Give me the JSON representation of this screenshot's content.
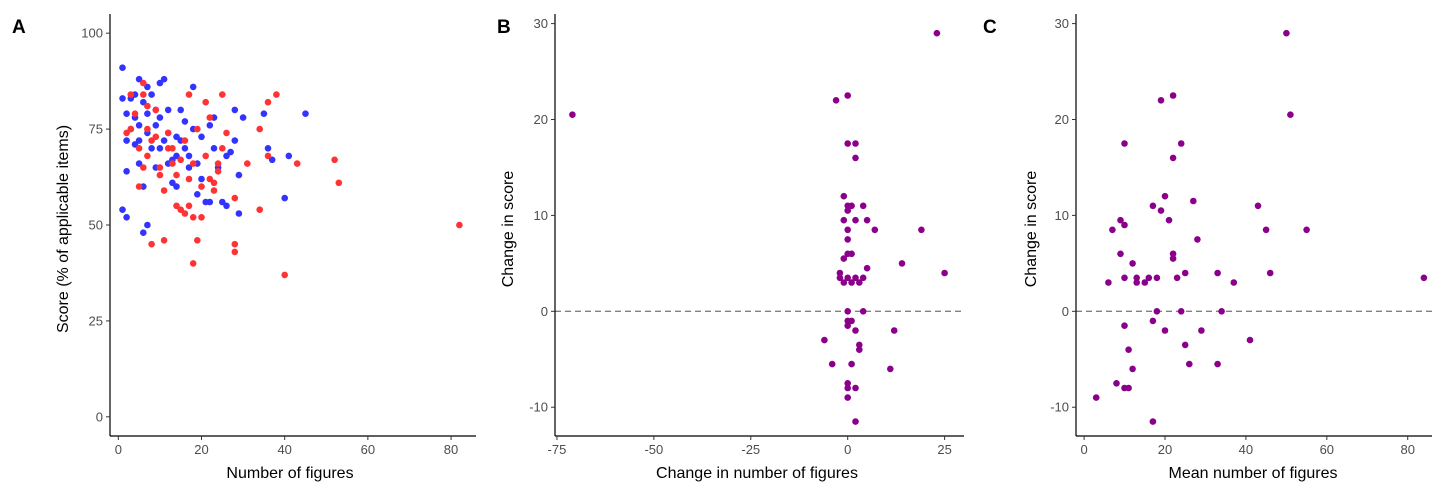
{
  "colors": {
    "series_a": "#3333ff",
    "series_b": "#ff3333",
    "purple": "#8b008b",
    "refline": "#808080"
  },
  "chart_data": [
    {
      "panel": "A",
      "type": "scatter",
      "xlabel": "Number of figures",
      "ylabel": "Score (% of applicable items)",
      "xlim": [
        -2,
        86
      ],
      "ylim": [
        -5,
        105
      ],
      "xticks": [
        0,
        20,
        40,
        60,
        80
      ],
      "yticks": [
        0,
        25,
        50,
        75,
        100
      ],
      "grid": false,
      "series": [
        {
          "color": "#3333ff",
          "points": [
            [
              1,
              91
            ],
            [
              1,
              83
            ],
            [
              1,
              54
            ],
            [
              2,
              52
            ],
            [
              2,
              64
            ],
            [
              2,
              72
            ],
            [
              2,
              79
            ],
            [
              3,
              75
            ],
            [
              3,
              83
            ],
            [
              4,
              78
            ],
            [
              4,
              71
            ],
            [
              4,
              84
            ],
            [
              5,
              66
            ],
            [
              5,
              72
            ],
            [
              5,
              76
            ],
            [
              5,
              88
            ],
            [
              6,
              48
            ],
            [
              6,
              60
            ],
            [
              6,
              82
            ],
            [
              7,
              86
            ],
            [
              7,
              50
            ],
            [
              7,
              74
            ],
            [
              7,
              79
            ],
            [
              8,
              84
            ],
            [
              8,
              70
            ],
            [
              9,
              80
            ],
            [
              9,
              76
            ],
            [
              9,
              65
            ],
            [
              10,
              78
            ],
            [
              10,
              87
            ],
            [
              10,
              70
            ],
            [
              11,
              72
            ],
            [
              11,
              88
            ],
            [
              12,
              74
            ],
            [
              12,
              80
            ],
            [
              12,
              66
            ],
            [
              13,
              67
            ],
            [
              13,
              61
            ],
            [
              14,
              60
            ],
            [
              14,
              73
            ],
            [
              14,
              68
            ],
            [
              15,
              72
            ],
            [
              15,
              80
            ],
            [
              16,
              70
            ],
            [
              16,
              77
            ],
            [
              17,
              65
            ],
            [
              17,
              68
            ],
            [
              18,
              86
            ],
            [
              18,
              75
            ],
            [
              19,
              66
            ],
            [
              19,
              58
            ],
            [
              20,
              62
            ],
            [
              20,
              73
            ],
            [
              21,
              56
            ],
            [
              22,
              76
            ],
            [
              22,
              56
            ],
            [
              23,
              78
            ],
            [
              23,
              70
            ],
            [
              24,
              65
            ],
            [
              25,
              56
            ],
            [
              26,
              55
            ],
            [
              26,
              68
            ],
            [
              27,
              69
            ],
            [
              28,
              80
            ],
            [
              28,
              72
            ],
            [
              29,
              53
            ],
            [
              29,
              63
            ],
            [
              30,
              78
            ],
            [
              35,
              79
            ],
            [
              36,
              70
            ],
            [
              37,
              67
            ],
            [
              40,
              57
            ],
            [
              41,
              68
            ],
            [
              45,
              79
            ]
          ]
        },
        {
          "color": "#ff3333",
          "points": [
            [
              2,
              74
            ],
            [
              3,
              75
            ],
            [
              3,
              84
            ],
            [
              4,
              79
            ],
            [
              5,
              70
            ],
            [
              5,
              60
            ],
            [
              6,
              65
            ],
            [
              6,
              84
            ],
            [
              6,
              87
            ],
            [
              7,
              68
            ],
            [
              7,
              75
            ],
            [
              7,
              81
            ],
            [
              8,
              45
            ],
            [
              8,
              72
            ],
            [
              9,
              80
            ],
            [
              9,
              73
            ],
            [
              10,
              65
            ],
            [
              10,
              63
            ],
            [
              11,
              46
            ],
            [
              11,
              59
            ],
            [
              12,
              70
            ],
            [
              12,
              74
            ],
            [
              13,
              66
            ],
            [
              13,
              70
            ],
            [
              14,
              55
            ],
            [
              14,
              63
            ],
            [
              15,
              54
            ],
            [
              15,
              67
            ],
            [
              16,
              53
            ],
            [
              16,
              72
            ],
            [
              17,
              62
            ],
            [
              17,
              84
            ],
            [
              17,
              55
            ],
            [
              18,
              40
            ],
            [
              18,
              52
            ],
            [
              18,
              66
            ],
            [
              19,
              46
            ],
            [
              19,
              75
            ],
            [
              20,
              52
            ],
            [
              20,
              60
            ],
            [
              21,
              82
            ],
            [
              21,
              68
            ],
            [
              22,
              62
            ],
            [
              22,
              78
            ],
            [
              23,
              61
            ],
            [
              23,
              59
            ],
            [
              24,
              64
            ],
            [
              24,
              66
            ],
            [
              25,
              84
            ],
            [
              25,
              70
            ],
            [
              26,
              74
            ],
            [
              28,
              43
            ],
            [
              28,
              45
            ],
            [
              28,
              57
            ],
            [
              31,
              66
            ],
            [
              34,
              54
            ],
            [
              34,
              75
            ],
            [
              36,
              68
            ],
            [
              36,
              82
            ],
            [
              38,
              84
            ],
            [
              40,
              37
            ],
            [
              43,
              66
            ],
            [
              52,
              67
            ],
            [
              53,
              61
            ],
            [
              82,
              50
            ]
          ]
        }
      ]
    },
    {
      "panel": "B",
      "type": "scatter",
      "xlabel": "Change in number of figures",
      "ylabel": "Change in score",
      "xlim": [
        -75.5,
        30
      ],
      "ylim": [
        -13,
        31
      ],
      "xticks": [
        -75,
        -50,
        -25,
        0,
        25
      ],
      "yticks": [
        -10,
        0,
        10,
        20,
        30
      ],
      "reference_line_y": 0,
      "grid": false,
      "series": [
        {
          "color": "#8b008b",
          "points": [
            [
              -71,
              20.5
            ],
            [
              -6,
              -3
            ],
            [
              -4,
              -5.5
            ],
            [
              -3,
              22
            ],
            [
              -2,
              4
            ],
            [
              -2,
              3.5
            ],
            [
              -1,
              3
            ],
            [
              -1,
              9.5
            ],
            [
              -1,
              5.5
            ],
            [
              -1,
              12
            ],
            [
              0,
              22.5
            ],
            [
              0,
              17.5
            ],
            [
              0,
              11
            ],
            [
              0,
              10.5
            ],
            [
              0,
              8.5
            ],
            [
              0,
              7.5
            ],
            [
              0,
              6
            ],
            [
              0,
              3.5
            ],
            [
              0,
              0
            ],
            [
              0,
              -1
            ],
            [
              0,
              -1.5
            ],
            [
              0,
              -7.5
            ],
            [
              0,
              -8
            ],
            [
              0,
              -9
            ],
            [
              1,
              -5.5
            ],
            [
              1,
              11
            ],
            [
              1,
              6
            ],
            [
              1,
              3
            ],
            [
              1,
              -1
            ],
            [
              2,
              17.5
            ],
            [
              2,
              16
            ],
            [
              2,
              9.5
            ],
            [
              2,
              -11.5
            ],
            [
              2,
              -8
            ],
            [
              2,
              -2
            ],
            [
              2,
              3.5
            ],
            [
              3,
              3
            ],
            [
              3,
              -3.5
            ],
            [
              3,
              -4
            ],
            [
              4,
              11
            ],
            [
              4,
              0
            ],
            [
              4,
              3.5
            ],
            [
              5,
              4.5
            ],
            [
              5,
              9.5
            ],
            [
              7,
              8.5
            ],
            [
              11,
              -6
            ],
            [
              12,
              -2
            ],
            [
              14,
              5
            ],
            [
              19,
              8.5
            ],
            [
              23,
              29
            ],
            [
              25,
              4
            ]
          ]
        }
      ]
    },
    {
      "panel": "C",
      "type": "scatter",
      "xlabel": "Mean number of figures",
      "ylabel": "Change in score",
      "xlim": [
        -2,
        86
      ],
      "ylim": [
        -13,
        31
      ],
      "xticks": [
        0,
        20,
        40,
        60,
        80
      ],
      "yticks": [
        -10,
        0,
        10,
        20,
        30
      ],
      "reference_line_y": 0,
      "grid": false,
      "series": [
        {
          "color": "#8b008b",
          "points": [
            [
              3,
              -9
            ],
            [
              6,
              3
            ],
            [
              7,
              8.5
            ],
            [
              8,
              -7.5
            ],
            [
              9,
              9.5
            ],
            [
              9,
              6
            ],
            [
              10,
              17.5
            ],
            [
              10,
              -1.5
            ],
            [
              10,
              9
            ],
            [
              10,
              3.5
            ],
            [
              10,
              -8
            ],
            [
              11,
              -4
            ],
            [
              11,
              -8
            ],
            [
              12,
              5
            ],
            [
              12,
              -6
            ],
            [
              13,
              3.5
            ],
            [
              13,
              3
            ],
            [
              15,
              3
            ],
            [
              16,
              3.5
            ],
            [
              17,
              -1
            ],
            [
              17,
              11
            ],
            [
              17,
              -11.5
            ],
            [
              18,
              3.5
            ],
            [
              18,
              0
            ],
            [
              19,
              22
            ],
            [
              19,
              10.5
            ],
            [
              20,
              12
            ],
            [
              20,
              -2
            ],
            [
              21,
              9.5
            ],
            [
              22,
              22.5
            ],
            [
              22,
              16
            ],
            [
              22,
              6
            ],
            [
              22,
              5.5
            ],
            [
              23,
              3.5
            ],
            [
              24,
              17.5
            ],
            [
              24,
              0
            ],
            [
              25,
              -3.5
            ],
            [
              25,
              4
            ],
            [
              26,
              -5.5
            ],
            [
              27,
              11.5
            ],
            [
              28,
              7.5
            ],
            [
              29,
              -2
            ],
            [
              33,
              4
            ],
            [
              33,
              -5.5
            ],
            [
              34,
              0
            ],
            [
              37,
              3
            ],
            [
              41,
              -3
            ],
            [
              43,
              11
            ],
            [
              45,
              8.5
            ],
            [
              46,
              4
            ],
            [
              50,
              29
            ],
            [
              51,
              20.5
            ],
            [
              55,
              8.5
            ],
            [
              84,
              3.5
            ]
          ]
        }
      ]
    }
  ],
  "panels_meta": [
    {
      "letter": "A",
      "x0": 0
    },
    {
      "letter": "B",
      "x0": 1
    },
    {
      "letter": "C",
      "x0": 2
    }
  ]
}
